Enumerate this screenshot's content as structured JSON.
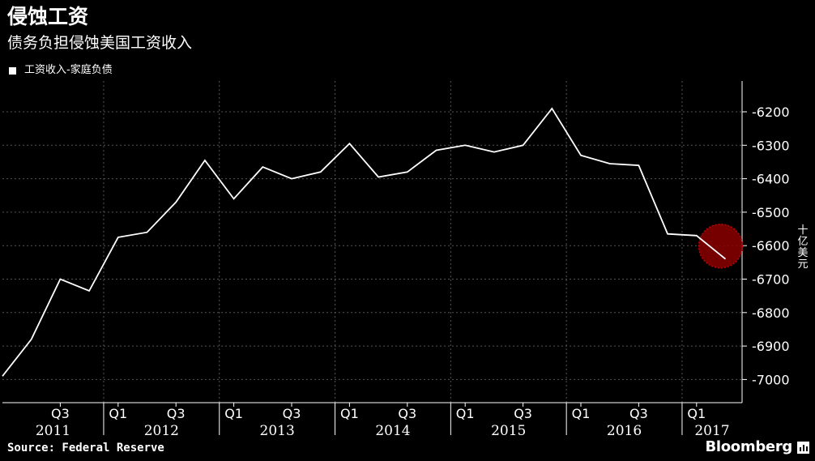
{
  "header": {
    "title": "侵蚀工资",
    "subtitle": "债务负担侵蚀美国工资收入"
  },
  "footer": {
    "source": "Source: Federal Reserve",
    "brand": "Bloomberg"
  },
  "colors": {
    "background": "#000000",
    "line": "#ffffff",
    "grid": "#555555",
    "highlight": "#8b0000"
  },
  "chart_data": {
    "type": "line",
    "legend": "top-left",
    "grid": true,
    "ylabel": "十亿美元",
    "ylim": [
      -7070,
      -6100
    ],
    "yticks": [
      -6200,
      -6300,
      -6400,
      -6500,
      -6600,
      -6700,
      -6800,
      -6900,
      -7000
    ],
    "ytick_labels": [
      "-6200",
      "-6300",
      "-6400",
      "-6500",
      "-6600",
      "-6700",
      "-6800",
      "-6900",
      "-7000"
    ],
    "x_quarter_ticks": [
      {
        "label": "Q3",
        "quarter": "2011Q3"
      },
      {
        "label": "Q1",
        "quarter": "2012Q1"
      },
      {
        "label": "Q3",
        "quarter": "2012Q3"
      },
      {
        "label": "Q1",
        "quarter": "2013Q1"
      },
      {
        "label": "Q3",
        "quarter": "2013Q3"
      },
      {
        "label": "Q1",
        "quarter": "2014Q1"
      },
      {
        "label": "Q3",
        "quarter": "2014Q3"
      },
      {
        "label": "Q1",
        "quarter": "2015Q1"
      },
      {
        "label": "Q3",
        "quarter": "2015Q3"
      },
      {
        "label": "Q1",
        "quarter": "2016Q1"
      },
      {
        "label": "Q3",
        "quarter": "2016Q3"
      },
      {
        "label": "Q1",
        "quarter": "2017Q1"
      }
    ],
    "x_year_labels": [
      "2011",
      "2012",
      "2013",
      "2014",
      "2015",
      "2016",
      "2017"
    ],
    "series": [
      {
        "name": "工资收入-家庭负债",
        "points": [
          {
            "x": "2011Q1",
            "y": -6990
          },
          {
            "x": "2011Q2",
            "y": -6880
          },
          {
            "x": "2011Q3",
            "y": -6700
          },
          {
            "x": "2011Q4",
            "y": -6735
          },
          {
            "x": "2012Q1",
            "y": -6575
          },
          {
            "x": "2012Q2",
            "y": -6560
          },
          {
            "x": "2012Q3",
            "y": -6470
          },
          {
            "x": "2012Q4",
            "y": -6345
          },
          {
            "x": "2013Q1",
            "y": -6460
          },
          {
            "x": "2013Q2",
            "y": -6365
          },
          {
            "x": "2013Q3",
            "y": -6400
          },
          {
            "x": "2013Q4",
            "y": -6380
          },
          {
            "x": "2014Q1",
            "y": -6295
          },
          {
            "x": "2014Q2",
            "y": -6395
          },
          {
            "x": "2014Q3",
            "y": -6380
          },
          {
            "x": "2014Q4",
            "y": -6315
          },
          {
            "x": "2015Q1",
            "y": -6300
          },
          {
            "x": "2015Q2",
            "y": -6320
          },
          {
            "x": "2015Q3",
            "y": -6300
          },
          {
            "x": "2015Q4",
            "y": -6190
          },
          {
            "x": "2016Q1",
            "y": -6330
          },
          {
            "x": "2016Q2",
            "y": -6355
          },
          {
            "x": "2016Q3",
            "y": -6360
          },
          {
            "x": "2016Q4",
            "y": -6565
          },
          {
            "x": "2017Q1",
            "y": -6570
          },
          {
            "x": "2017Q2",
            "y": -6640
          }
        ]
      }
    ],
    "highlight_point": {
      "x": "2017Q2",
      "y": -6640
    }
  }
}
